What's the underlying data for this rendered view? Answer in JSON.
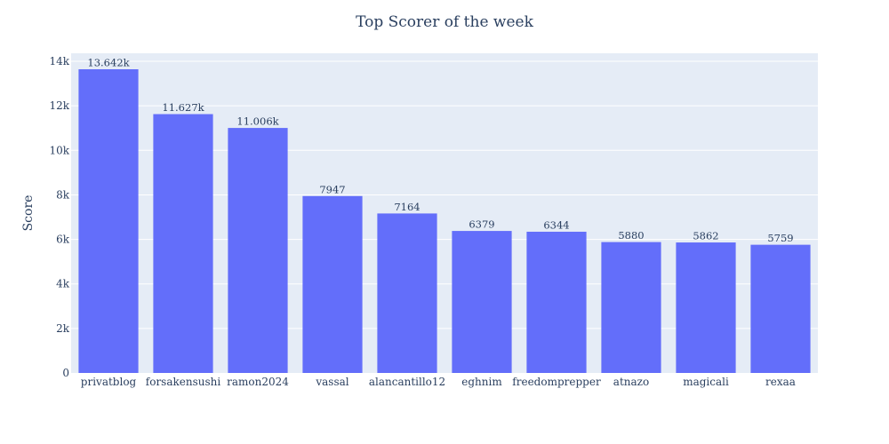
{
  "chart_data": {
    "type": "bar",
    "title": "Top Scorer of the week",
    "xlabel": "",
    "ylabel": "Score",
    "categories": [
      "privatblog",
      "forsakensushi",
      "ramon2024",
      "vassal",
      "alancantillo12",
      "eghnim",
      "freedomprepper",
      "atnazo",
      "magicali",
      "rexaa"
    ],
    "values": [
      13642,
      11627,
      11006,
      7947,
      7164,
      6379,
      6344,
      5880,
      5862,
      5759
    ],
    "value_labels": [
      "13.642k",
      "11.627k",
      "11.006k",
      "7947",
      "7164",
      "6379",
      "6344",
      "5880",
      "5862",
      "5759"
    ],
    "ylim": [
      0,
      14360
    ],
    "y_ticks": [
      0,
      2000,
      4000,
      6000,
      8000,
      10000,
      12000,
      14000
    ],
    "y_tick_labels": [
      "0",
      "2k",
      "4k",
      "6k",
      "8k",
      "10k",
      "12k",
      "14k"
    ],
    "grid": true,
    "legend": "none",
    "colors": {
      "bar": "#636efa",
      "plot_bg": "#e5ecf6",
      "grid": "#ffffff",
      "text": "#2a3f5f"
    }
  }
}
